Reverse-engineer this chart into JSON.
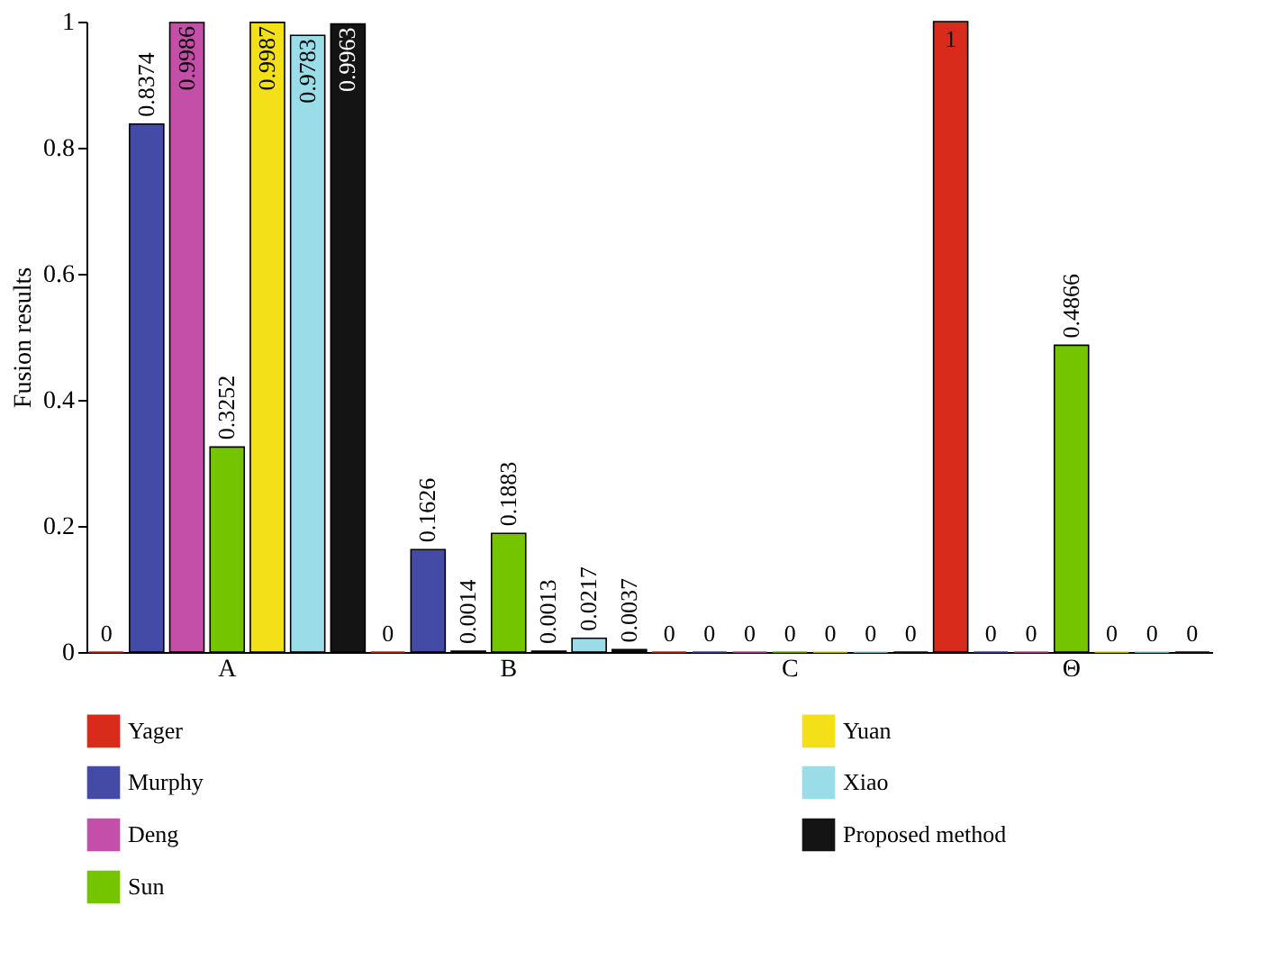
{
  "chart_data": {
    "type": "bar",
    "ylabel": "Fusion results",
    "categories": [
      "A",
      "B",
      "C",
      "Θ"
    ],
    "series": [
      {
        "name": "Yager",
        "color": "#d92b1c",
        "values": [
          0,
          0,
          0,
          1
        ]
      },
      {
        "name": "Murphy",
        "color": "#444ba6",
        "values": [
          0.8374,
          0.1626,
          0,
          0
        ]
      },
      {
        "name": "Deng",
        "color": "#c44fa9",
        "values": [
          0.9986,
          0.0014,
          0,
          0
        ]
      },
      {
        "name": "Sun",
        "color": "#74c400",
        "values": [
          0.3252,
          0.1883,
          0,
          0.4866
        ]
      },
      {
        "name": "Yuan",
        "color": "#f4e019",
        "values": [
          0.9987,
          0.0013,
          0,
          0
        ]
      },
      {
        "name": "Xiao",
        "color": "#9adde9",
        "values": [
          0.9783,
          0.0217,
          0,
          0
        ]
      },
      {
        "name": "Proposed method",
        "color": "#141414",
        "values": [
          0.9963,
          0.0037,
          0,
          0
        ]
      }
    ],
    "ylim": [
      0,
      1
    ],
    "yticks": [
      0,
      0.2,
      0.4,
      0.6,
      0.8,
      1
    ],
    "data_labels": true,
    "grid": false,
    "legend": "bottom"
  }
}
